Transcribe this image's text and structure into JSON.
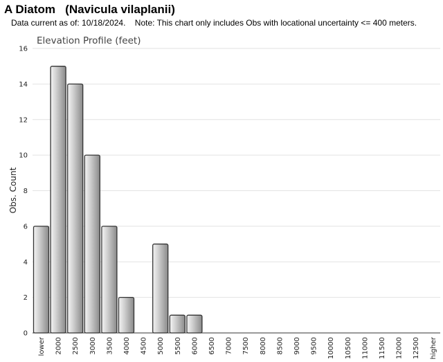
{
  "header": {
    "title": "A Diatom   (Navicula vilaplanii)",
    "note": "Data current as of: 10/18/2024.    Note: This chart only includes Obs with locational uncertainty <= 400 meters."
  },
  "colors": {
    "bar_light": "#f4f4f4",
    "bar_dark": "#8a8a8a",
    "bar_stroke": "#333333",
    "grid": "#e2e2e2"
  },
  "chart_data": {
    "type": "bar",
    "title": "Elevation Profile (feet)",
    "xlabel": "",
    "ylabel": "Obs. Count",
    "ylim": [
      0,
      16
    ],
    "yticks": [
      0,
      2,
      4,
      6,
      8,
      10,
      12,
      14,
      16
    ],
    "grid": true,
    "categories": [
      "lower",
      "2000",
      "2500",
      "3000",
      "3500",
      "4000",
      "4500",
      "5000",
      "5500",
      "6000",
      "6500",
      "7000",
      "7500",
      "8000",
      "8500",
      "9000",
      "9500",
      "10000",
      "10500",
      "11000",
      "11500",
      "12000",
      "12500",
      "higher"
    ],
    "values": [
      6,
      15,
      14,
      10,
      6,
      2,
      0,
      5,
      1,
      1,
      0,
      0,
      0,
      0,
      0,
      0,
      0,
      0,
      0,
      0,
      0,
      0,
      0,
      0
    ]
  }
}
